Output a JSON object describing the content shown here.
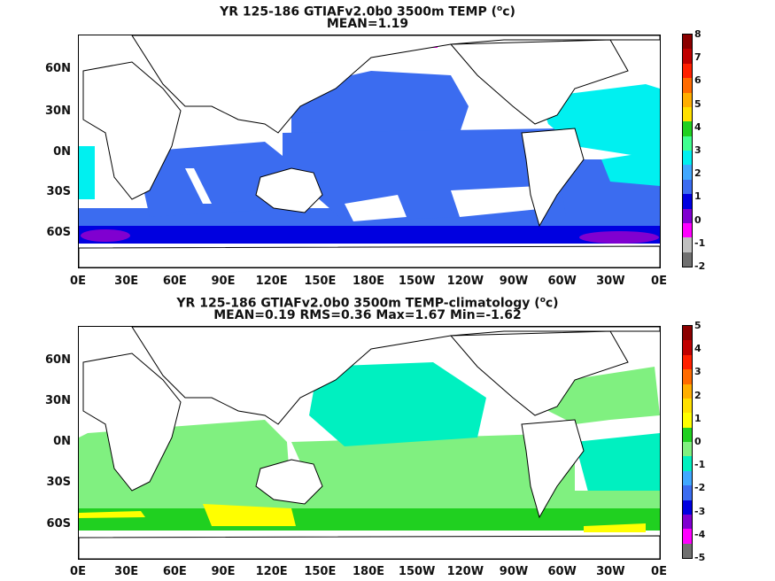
{
  "panel1": {
    "title_line1_pre": "YR 125-186 GTIAFv2.0b0 3500m TEMP (",
    "title_sup": "o",
    "title_line1_post": "c)",
    "title_line2": "MEAN=1.19",
    "lat_labels": [
      "60N",
      "30N",
      "0N",
      "30S",
      "60S"
    ],
    "lon_labels": [
      "0E",
      "30E",
      "60E",
      "90E",
      "120E",
      "150E",
      "180E",
      "150W",
      "120W",
      "90W",
      "60W",
      "30W",
      "0E"
    ],
    "colorbar_labels": [
      "8",
      "7",
      "6",
      "5",
      "4",
      "3",
      "2",
      "1",
      "0",
      "-1",
      "-2"
    ],
    "colorbar_colors": [
      "#8b0000",
      "#c00000",
      "#ff2000",
      "#ff6a00",
      "#ffae00",
      "#ffe000",
      "#20d020",
      "#40ff90",
      "#00f0f0",
      "#40a8ff",
      "#3b6cf0",
      "#0000e0",
      "#8000d0",
      "#ff00ff",
      "#c0c0c0",
      "#707070"
    ]
  },
  "panel2": {
    "title_line1_pre": "YR 125-186 GTIAFv2.0b0 3500m TEMP-climatology (",
    "title_sup": "o",
    "title_line1_post": "c)",
    "title_line2": "MEAN=0.19   RMS=0.36   Max=1.67   Min=-1.62",
    "lat_labels": [
      "60N",
      "30N",
      "0N",
      "30S",
      "60S"
    ],
    "lon_labels": [
      "0E",
      "30E",
      "60E",
      "90E",
      "120E",
      "150E",
      "180E",
      "150W",
      "120W",
      "90W",
      "60W",
      "30W",
      "0E"
    ],
    "colorbar_labels": [
      "5",
      "4",
      "3",
      "2",
      "1",
      "0",
      "-1",
      "-2",
      "-3",
      "-4",
      "-5"
    ],
    "colorbar_colors": [
      "#8b0000",
      "#c00000",
      "#ff2000",
      "#ff6a00",
      "#ffae00",
      "#ffe000",
      "#ffff00",
      "#20d020",
      "#80f080",
      "#00f0c0",
      "#40a8ff",
      "#3b6cf0",
      "#0000e0",
      "#8000d0",
      "#ff00ff",
      "#707070"
    ]
  }
}
